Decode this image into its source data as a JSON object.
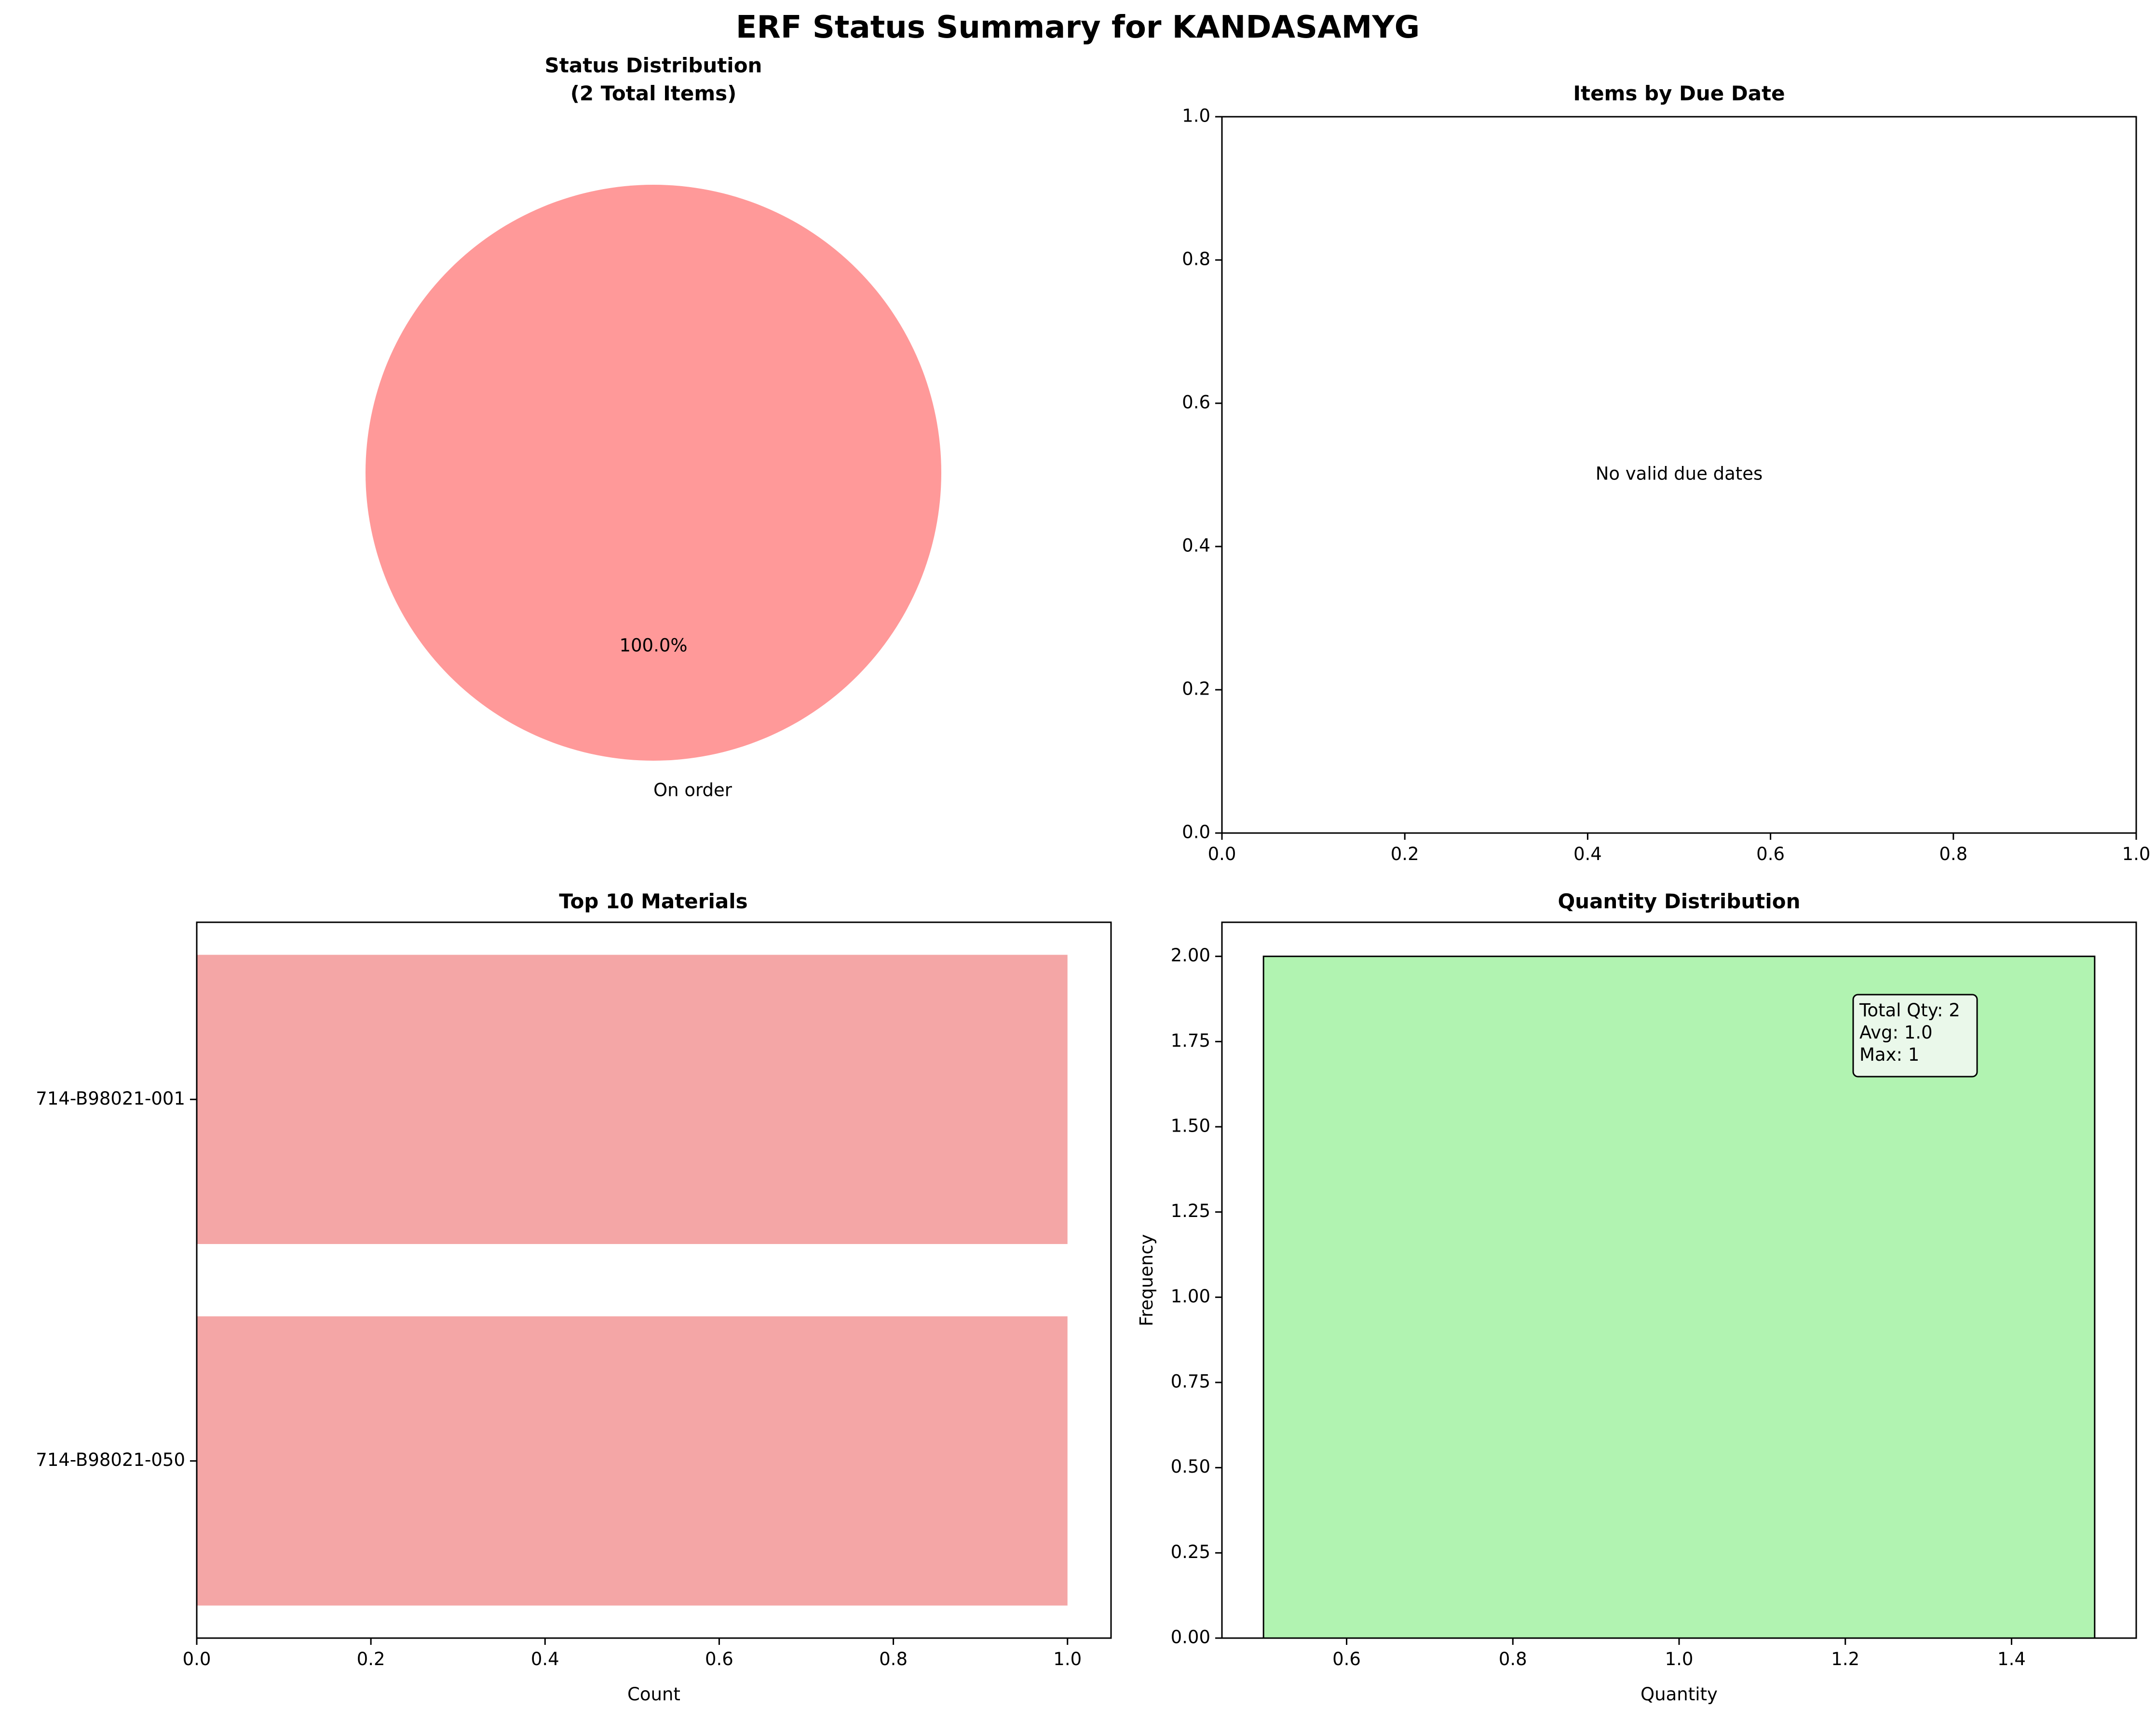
{
  "suptitle": "ERF Status Summary for KANDASAMYG",
  "chart_data": [
    {
      "type": "pie",
      "title": "Status Distribution",
      "subtitle": "(2 Total Items)",
      "slices": [
        {
          "label": "On order",
          "value": 2,
          "pct_label": "100.0%",
          "color": "#ff9999"
        }
      ]
    },
    {
      "type": "bar",
      "title": "Items by Due Date",
      "message": "No valid due dates",
      "xlim": [
        0,
        1
      ],
      "ylim": [
        0,
        1
      ],
      "xticks": [
        "0.0",
        "0.2",
        "0.4",
        "0.6",
        "0.8",
        "1.0"
      ],
      "yticks": [
        "0.0",
        "0.2",
        "0.4",
        "0.6",
        "0.8",
        "1.0"
      ]
    },
    {
      "type": "bar",
      "orientation": "horizontal",
      "title": "Top 10 Materials",
      "xlabel": "Count",
      "categories": [
        "714-B98021-001",
        "714-B98021-050"
      ],
      "values": [
        1,
        1
      ],
      "xlim": [
        0,
        1.05
      ],
      "xticks": [
        "0.0",
        "0.2",
        "0.4",
        "0.6",
        "0.8",
        "1.0"
      ],
      "color": "#f08080"
    },
    {
      "type": "bar",
      "title": "Quantity Distribution",
      "xlabel": "Quantity",
      "ylabel": "Frequency",
      "bins": [
        {
          "x0": 0.5,
          "x1": 1.5,
          "count": 2
        }
      ],
      "xlim": [
        0.45,
        1.55
      ],
      "ylim": [
        0,
        2.1
      ],
      "xticks": [
        "0.6",
        "0.8",
        "1.0",
        "1.2",
        "1.4"
      ],
      "yticks": [
        "0.00",
        "0.25",
        "0.50",
        "0.75",
        "1.00",
        "1.25",
        "1.50",
        "1.75",
        "2.00"
      ],
      "stats_box": [
        "Total Qty: 2",
        "Avg: 1.0",
        "Max: 1"
      ],
      "color": "#90ee90"
    }
  ]
}
